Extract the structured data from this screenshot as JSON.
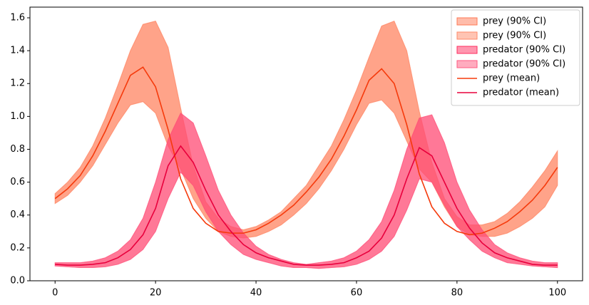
{
  "chart_data": {
    "type": "line",
    "x": [
      0,
      2.5,
      5,
      7.5,
      10,
      12.5,
      15,
      17.5,
      20,
      22.5,
      25,
      27.5,
      30,
      32.5,
      35,
      37.5,
      40,
      42.5,
      45,
      47.5,
      50,
      52.5,
      55,
      57.5,
      60,
      62.5,
      65,
      67.5,
      70,
      72.5,
      75,
      77.5,
      80,
      82.5,
      85,
      87.5,
      90,
      92.5,
      95,
      97.5,
      100
    ],
    "bands": [
      {
        "name": "prey (90% CI)",
        "color": "#ff7a55",
        "lower": [
          0.47,
          0.52,
          0.6,
          0.7,
          0.83,
          0.96,
          1.07,
          1.09,
          1.02,
          0.82,
          0.68,
          0.5,
          0.38,
          0.3,
          0.27,
          0.26,
          0.27,
          0.3,
          0.34,
          0.4,
          0.47,
          0.56,
          0.67,
          0.8,
          0.95,
          1.08,
          1.1,
          1.02,
          0.85,
          0.68,
          0.6,
          0.45,
          0.33,
          0.28,
          0.27,
          0.27,
          0.29,
          0.33,
          0.38,
          0.45,
          0.58
        ],
        "upper": [
          0.53,
          0.6,
          0.69,
          0.82,
          0.99,
          1.19,
          1.4,
          1.56,
          1.58,
          1.42,
          1.05,
          0.7,
          0.48,
          0.38,
          0.33,
          0.31,
          0.33,
          0.37,
          0.42,
          0.5,
          0.58,
          0.7,
          0.82,
          0.98,
          1.16,
          1.36,
          1.55,
          1.58,
          1.4,
          1.03,
          0.72,
          0.5,
          0.39,
          0.34,
          0.34,
          0.36,
          0.41,
          0.48,
          0.57,
          0.67,
          0.79
        ]
      },
      {
        "name": "prey (90% CI)",
        "color": "#ff8a68",
        "lower": [
          0.47,
          0.52,
          0.6,
          0.7,
          0.83,
          0.96,
          1.07,
          1.09,
          1.02,
          0.82,
          0.68,
          0.5,
          0.38,
          0.3,
          0.27,
          0.26,
          0.27,
          0.3,
          0.34,
          0.4,
          0.47,
          0.56,
          0.67,
          0.8,
          0.95,
          1.08,
          1.1,
          1.02,
          0.85,
          0.68,
          0.6,
          0.45,
          0.33,
          0.28,
          0.27,
          0.27,
          0.29,
          0.33,
          0.38,
          0.45,
          0.58
        ],
        "upper": [
          0.53,
          0.6,
          0.69,
          0.82,
          0.99,
          1.19,
          1.4,
          1.56,
          1.58,
          1.42,
          1.05,
          0.7,
          0.48,
          0.38,
          0.33,
          0.31,
          0.33,
          0.37,
          0.42,
          0.5,
          0.58,
          0.7,
          0.82,
          0.98,
          1.16,
          1.36,
          1.55,
          1.58,
          1.4,
          1.03,
          0.72,
          0.5,
          0.39,
          0.34,
          0.34,
          0.36,
          0.41,
          0.48,
          0.57,
          0.67,
          0.79
        ]
      },
      {
        "name": "predator (90% CI)",
        "color": "#ff2d5f",
        "lower": [
          0.09,
          0.085,
          0.08,
          0.08,
          0.085,
          0.1,
          0.13,
          0.19,
          0.3,
          0.5,
          0.66,
          0.58,
          0.42,
          0.3,
          0.22,
          0.16,
          0.13,
          0.11,
          0.09,
          0.08,
          0.08,
          0.075,
          0.08,
          0.085,
          0.1,
          0.13,
          0.18,
          0.27,
          0.43,
          0.62,
          0.6,
          0.46,
          0.33,
          0.25,
          0.18,
          0.14,
          0.11,
          0.1,
          0.09,
          0.085,
          0.08
        ],
        "upper": [
          0.11,
          0.11,
          0.11,
          0.12,
          0.14,
          0.18,
          0.25,
          0.38,
          0.6,
          0.86,
          1.02,
          0.96,
          0.76,
          0.55,
          0.4,
          0.29,
          0.21,
          0.16,
          0.13,
          0.11,
          0.1,
          0.11,
          0.12,
          0.14,
          0.18,
          0.25,
          0.36,
          0.55,
          0.8,
          0.99,
          1.01,
          0.84,
          0.6,
          0.43,
          0.31,
          0.22,
          0.17,
          0.14,
          0.12,
          0.11,
          0.11
        ]
      },
      {
        "name": "predator (90% CI)",
        "color": "#ff5a80",
        "lower": [
          0.09,
          0.085,
          0.08,
          0.08,
          0.085,
          0.1,
          0.13,
          0.19,
          0.3,
          0.5,
          0.66,
          0.58,
          0.42,
          0.3,
          0.22,
          0.16,
          0.13,
          0.11,
          0.09,
          0.08,
          0.08,
          0.075,
          0.08,
          0.085,
          0.1,
          0.13,
          0.18,
          0.27,
          0.43,
          0.62,
          0.6,
          0.46,
          0.33,
          0.25,
          0.18,
          0.14,
          0.11,
          0.1,
          0.09,
          0.085,
          0.08
        ],
        "upper": [
          0.11,
          0.11,
          0.11,
          0.12,
          0.14,
          0.18,
          0.25,
          0.38,
          0.6,
          0.86,
          1.02,
          0.96,
          0.76,
          0.55,
          0.4,
          0.29,
          0.21,
          0.16,
          0.13,
          0.11,
          0.1,
          0.11,
          0.12,
          0.14,
          0.18,
          0.25,
          0.36,
          0.55,
          0.8,
          0.99,
          1.01,
          0.84,
          0.6,
          0.43,
          0.31,
          0.22,
          0.17,
          0.14,
          0.12,
          0.11,
          0.11
        ]
      }
    ],
    "series": [
      {
        "name": "prey (mean)",
        "color": "#f53a0c",
        "values": [
          0.5,
          0.56,
          0.64,
          0.76,
          0.91,
          1.08,
          1.25,
          1.3,
          1.18,
          0.92,
          0.62,
          0.44,
          0.35,
          0.3,
          0.29,
          0.29,
          0.31,
          0.35,
          0.4,
          0.46,
          0.54,
          0.63,
          0.74,
          0.88,
          1.04,
          1.22,
          1.29,
          1.2,
          0.95,
          0.65,
          0.45,
          0.35,
          0.3,
          0.28,
          0.29,
          0.32,
          0.36,
          0.42,
          0.49,
          0.58,
          0.69
        ]
      },
      {
        "name": "predator (mean)",
        "color": "#e8003c",
        "values": [
          0.1,
          0.095,
          0.095,
          0.1,
          0.11,
          0.14,
          0.19,
          0.28,
          0.44,
          0.7,
          0.82,
          0.72,
          0.55,
          0.4,
          0.3,
          0.22,
          0.17,
          0.14,
          0.12,
          0.1,
          0.095,
          0.095,
          0.1,
          0.11,
          0.14,
          0.18,
          0.26,
          0.4,
          0.62,
          0.81,
          0.76,
          0.6,
          0.44,
          0.32,
          0.23,
          0.17,
          0.14,
          0.12,
          0.1,
          0.095,
          0.095
        ]
      }
    ],
    "xlim": [
      -5,
      105
    ],
    "xticks": [
      0,
      20,
      40,
      60,
      80,
      100
    ],
    "ylim": [
      0,
      1.665
    ],
    "yticks": [
      {
        "value": 0,
        "label": "0.0"
      },
      {
        "value": 0.2,
        "label": "0.2"
      },
      {
        "value": 0.4,
        "label": "0.4"
      },
      {
        "value": 0.6,
        "label": "0.6"
      },
      {
        "value": 0.8,
        "label": "0.8"
      },
      {
        "value": 1.0,
        "label": "1.0"
      },
      {
        "value": 1.2,
        "label": "1.2"
      },
      {
        "value": 1.4,
        "label": "1.4"
      },
      {
        "value": 1.6,
        "label": "1.6"
      }
    ],
    "band_opacity": 0.5,
    "legend": "upper right"
  }
}
